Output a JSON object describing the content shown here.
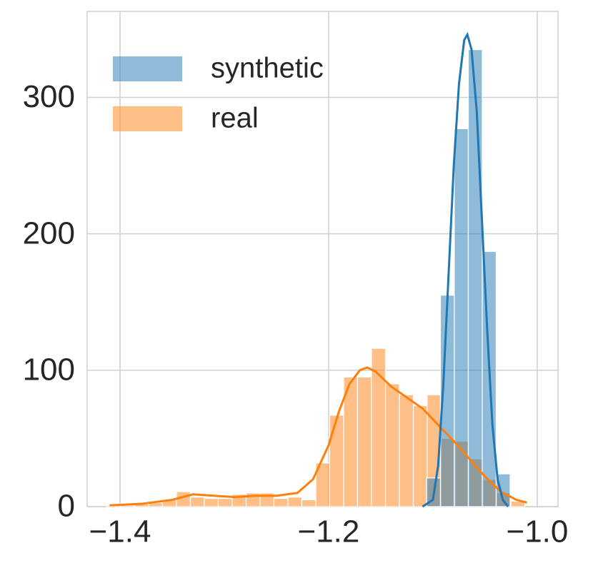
{
  "chart_data": {
    "type": "histogram",
    "xlim": [
      -1.4315,
      -0.9801
    ],
    "ylim": [
      0,
      363
    ],
    "xticks": [
      {
        "value": -1.4,
        "label": "−1.4"
      },
      {
        "value": -1.2,
        "label": "−1.2"
      },
      {
        "value": -1.0,
        "label": "−1.0"
      }
    ],
    "yticks": [
      0,
      100,
      200,
      300
    ],
    "grid": true,
    "legend": "upper left",
    "series": [
      {
        "name": "synthetic",
        "color": "#1f77b4",
        "bins": [
          -1.1062,
          -1.0928,
          -1.0795,
          -1.0661,
          -1.0527,
          -1.0394,
          -1.026
        ],
        "values": [
          21,
          155,
          277,
          335,
          187,
          24
        ],
        "kde": {
          "x": [
            -1.11,
            -1.1,
            -1.095,
            -1.09,
            -1.085,
            -1.08,
            -1.075,
            -1.07,
            -1.067,
            -1.063,
            -1.058,
            -1.053,
            -1.048,
            -1.043,
            -1.038,
            -1.033,
            -1.028
          ],
          "y": [
            0,
            5,
            30,
            90,
            170,
            250,
            310,
            342,
            346,
            335,
            290,
            210,
            130,
            60,
            20,
            5,
            0
          ]
        }
      },
      {
        "name": "real",
        "color": "#ff7f0e",
        "bins": [
          -1.4127,
          -1.3993,
          -1.386,
          -1.3726,
          -1.3593,
          -1.3459,
          -1.3326,
          -1.3192,
          -1.3058,
          -1.2925,
          -1.2791,
          -1.2658,
          -1.2524,
          -1.239,
          -1.2257,
          -1.2123,
          -1.199,
          -1.1856,
          -1.1723,
          -1.1589,
          -1.1455,
          -1.1322,
          -1.1188,
          -1.1055,
          -1.0921,
          -1.0787,
          -1.0654,
          -1.052,
          -1.0387,
          -1.0253,
          -1.0119
        ],
        "values": [
          1,
          1,
          2,
          3,
          5,
          11,
          7,
          6,
          6,
          9,
          10,
          10,
          6,
          7,
          5,
          32,
          67,
          95,
          95,
          116,
          90,
          82,
          74,
          82,
          50,
          48,
          35,
          20,
          10,
          4
        ],
        "kde": {
          "x": [
            -1.41,
            -1.38,
            -1.35,
            -1.33,
            -1.31,
            -1.29,
            -1.27,
            -1.25,
            -1.23,
            -1.215,
            -1.2,
            -1.19,
            -1.18,
            -1.17,
            -1.163,
            -1.155,
            -1.14,
            -1.125,
            -1.11,
            -1.095,
            -1.08,
            -1.065,
            -1.05,
            -1.035,
            -1.02,
            -1.01
          ],
          "y": [
            1,
            2,
            5,
            9,
            8,
            7,
            8,
            8,
            10,
            20,
            45,
            70,
            90,
            100,
            102,
            99,
            88,
            80,
            72,
            60,
            48,
            35,
            22,
            11,
            5,
            3
          ]
        }
      }
    ]
  }
}
